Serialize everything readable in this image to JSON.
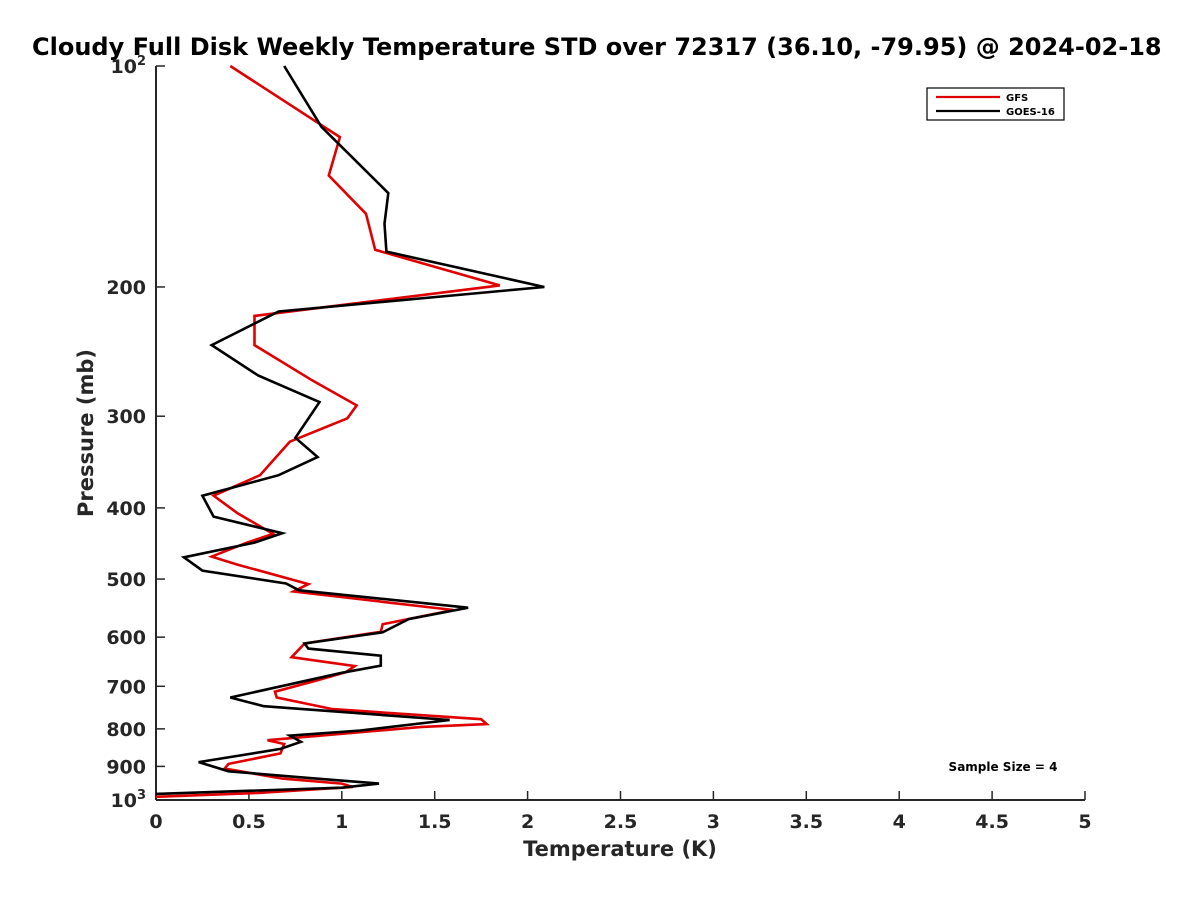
{
  "chart_data": {
    "type": "line",
    "title": "Cloudy Full Disk Weekly Temperature STD over 72317 (36.10, -79.95) @ 2024-02-18",
    "xlabel": "Temperature (K)",
    "ylabel": "Pressure (mb)",
    "xlim": [
      0,
      5
    ],
    "ylim": [
      100,
      1000
    ],
    "y_scale": "log",
    "y_reversed": true,
    "grid": false,
    "x_ticks": [
      0,
      0.5,
      1,
      1.5,
      2,
      2.5,
      3,
      3.5,
      4,
      4.5,
      5
    ],
    "x_tick_labels": [
      "0",
      "0.5",
      "1",
      "1.5",
      "2",
      "2.5",
      "3",
      "3.5",
      "4",
      "4.5",
      "5"
    ],
    "y_ticks": [
      100,
      200,
      300,
      400,
      500,
      600,
      700,
      800,
      900,
      1000
    ],
    "y_tick_labels": [
      {
        "base": "10",
        "exp": "2"
      },
      {
        "base": "200",
        "exp": ""
      },
      {
        "base": "300",
        "exp": ""
      },
      {
        "base": "400",
        "exp": ""
      },
      {
        "base": "500",
        "exp": ""
      },
      {
        "base": "600",
        "exp": ""
      },
      {
        "base": "700",
        "exp": ""
      },
      {
        "base": "800",
        "exp": ""
      },
      {
        "base": "900",
        "exp": ""
      },
      {
        "base": "10",
        "exp": "3"
      }
    ],
    "legend_position": "top-right",
    "series": [
      {
        "name": "GFS",
        "color": "#e00000",
        "points": [
          [
            0.4,
            100
          ],
          [
            0.99,
            125
          ],
          [
            0.93,
            141
          ],
          [
            1.13,
            159
          ],
          [
            1.18,
            178
          ],
          [
            1.85,
            199
          ],
          [
            0.53,
            219
          ],
          [
            0.53,
            240
          ],
          [
            0.84,
            268
          ],
          [
            1.08,
            290
          ],
          [
            1.03,
            302
          ],
          [
            0.72,
            325
          ],
          [
            0.56,
            361
          ],
          [
            0.31,
            385
          ],
          [
            0.44,
            407
          ],
          [
            0.63,
            434
          ],
          [
            0.49,
            446
          ],
          [
            0.3,
            466
          ],
          [
            0.44,
            478
          ],
          [
            0.82,
            508
          ],
          [
            0.74,
            520
          ],
          [
            1.6,
            551
          ],
          [
            1.22,
            576
          ],
          [
            1.21,
            590
          ],
          [
            0.8,
            612
          ],
          [
            0.73,
            639
          ],
          [
            1.07,
            657
          ],
          [
            1.02,
            670
          ],
          [
            0.85,
            689
          ],
          [
            0.64,
            712
          ],
          [
            0.65,
            725
          ],
          [
            0.95,
            752
          ],
          [
            1.75,
            776
          ],
          [
            1.78,
            788
          ],
          [
            1.43,
            795
          ],
          [
            0.6,
            829
          ],
          [
            0.69,
            839
          ],
          [
            0.67,
            864
          ],
          [
            0.39,
            893
          ],
          [
            0.37,
            906
          ],
          [
            0.68,
            935
          ],
          [
            1.0,
            950
          ],
          [
            1.06,
            960
          ],
          [
            0.55,
            978
          ],
          [
            0.0,
            990
          ]
        ]
      },
      {
        "name": "GOES-16",
        "color": "#000000",
        "points": [
          [
            0.69,
            100
          ],
          [
            0.89,
            121
          ],
          [
            1.25,
            149
          ],
          [
            1.23,
            164
          ],
          [
            1.24,
            179
          ],
          [
            2.09,
            200
          ],
          [
            0.66,
            216
          ],
          [
            0.3,
            240
          ],
          [
            0.55,
            264
          ],
          [
            0.88,
            287
          ],
          [
            0.75,
            321
          ],
          [
            0.87,
            341
          ],
          [
            0.66,
            361
          ],
          [
            0.25,
            385
          ],
          [
            0.31,
            411
          ],
          [
            0.68,
            433
          ],
          [
            0.53,
            446
          ],
          [
            0.15,
            467
          ],
          [
            0.25,
            487
          ],
          [
            0.7,
            507
          ],
          [
            0.77,
            518
          ],
          [
            1.68,
            547
          ],
          [
            1.36,
            567
          ],
          [
            1.22,
            591
          ],
          [
            0.8,
            612
          ],
          [
            0.82,
            622
          ],
          [
            1.21,
            636
          ],
          [
            1.21,
            656
          ],
          [
            1.0,
            671
          ],
          [
            0.4,
            725
          ],
          [
            0.58,
            745
          ],
          [
            1.58,
            778
          ],
          [
            1.1,
            804
          ],
          [
            0.72,
            817
          ],
          [
            0.78,
            833
          ],
          [
            0.67,
            852
          ],
          [
            0.23,
            888
          ],
          [
            0.39,
            914
          ],
          [
            0.82,
            933
          ],
          [
            1.2,
            950
          ],
          [
            1.0,
            962
          ],
          [
            0.0,
            981
          ]
        ]
      }
    ],
    "annotations": [
      "Sample Size = 4"
    ]
  }
}
